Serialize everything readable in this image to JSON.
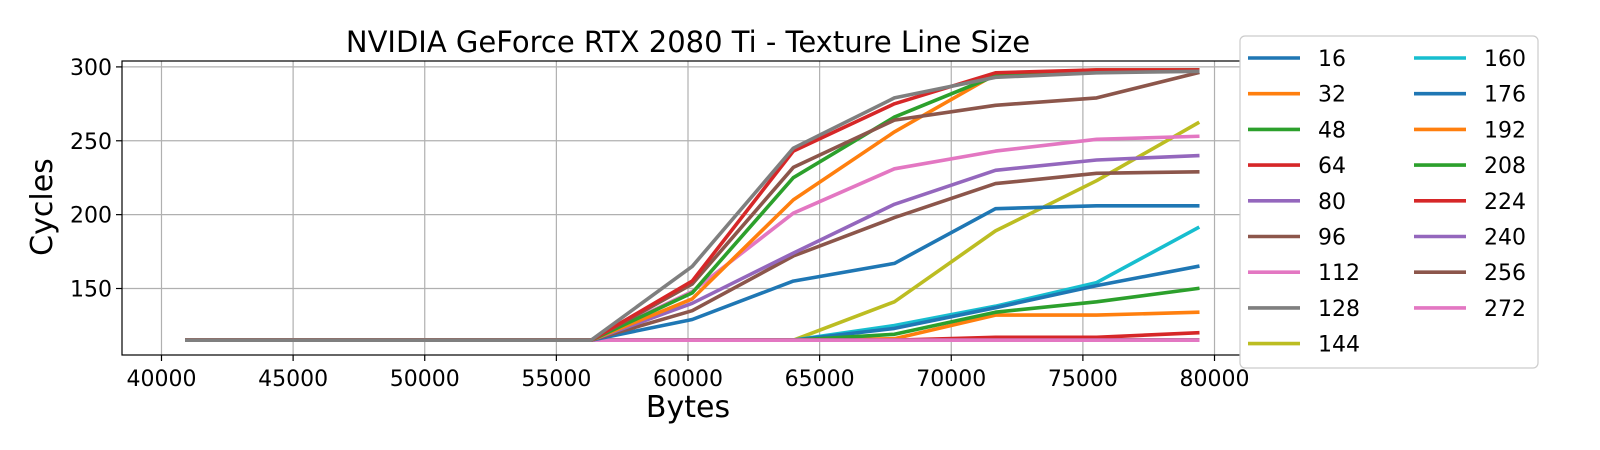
{
  "chart_data": {
    "type": "line",
    "title": "NVIDIA GeForce RTX 2080 Ti - Texture Line Size",
    "xlabel": "Bytes",
    "ylabel": "Cycles",
    "xlim": [
      38500,
      81500
    ],
    "ylim": [
      105,
      304
    ],
    "xticks": [
      40000,
      45000,
      50000,
      55000,
      60000,
      65000,
      70000,
      75000,
      80000
    ],
    "yticks": [
      150,
      200,
      250,
      300
    ],
    "grid": true,
    "legend_position": "outside-right",
    "legend_columns": 2,
    "x": [
      40960,
      56320,
      60160,
      64000,
      67840,
      71680,
      75520,
      79360
    ],
    "series": [
      {
        "name": "16",
        "color": "#1f77b4",
        "values": [
          115,
          115,
          115,
          115,
          115,
          115,
          115,
          115
        ]
      },
      {
        "name": "32",
        "color": "#ff7f0e",
        "values": [
          115,
          115,
          115,
          115,
          115,
          115,
          115,
          115
        ]
      },
      {
        "name": "48",
        "color": "#2ca02c",
        "values": [
          115,
          115,
          115,
          115,
          115,
          115,
          115,
          115
        ]
      },
      {
        "name": "64",
        "color": "#d62728",
        "values": [
          115,
          115,
          115,
          115,
          115,
          115,
          115,
          115
        ]
      },
      {
        "name": "80",
        "color": "#9467bd",
        "values": [
          115,
          115,
          115,
          115,
          115,
          115,
          115,
          115
        ]
      },
      {
        "name": "96",
        "color": "#8c564b",
        "values": [
          115,
          115,
          115,
          115,
          115,
          115,
          115,
          115
        ]
      },
      {
        "name": "112",
        "color": "#e377c2",
        "values": [
          115,
          115,
          115,
          115,
          115,
          115,
          115,
          115
        ]
      },
      {
        "name": "128",
        "color": "#7f7f7f",
        "values": [
          115,
          115,
          115,
          115,
          115,
          115,
          115,
          115
        ]
      },
      {
        "name": "144",
        "color": "#bcbd22",
        "values": [
          115,
          115,
          115,
          115,
          141,
          189,
          223,
          262
        ]
      },
      {
        "name": "160",
        "color": "#17becf",
        "values": [
          115,
          115,
          115,
          115,
          125,
          138,
          154,
          191
        ]
      },
      {
        "name": "176",
        "color": "#1f77b4",
        "values": [
          115,
          115,
          115,
          115,
          123,
          137,
          152,
          165
        ]
      },
      {
        "name": "192",
        "color": "#ff7f0e",
        "values": [
          115,
          115,
          115,
          115,
          116,
          132,
          132,
          134
        ]
      },
      {
        "name": "208",
        "color": "#2ca02c",
        "values": [
          115,
          115,
          115,
          115,
          119,
          134,
          141,
          150
        ]
      },
      {
        "name": "224",
        "color": "#d62728",
        "values": [
          115,
          115,
          115,
          115,
          115,
          117,
          117,
          120
        ]
      },
      {
        "name": "240",
        "color": "#9467bd",
        "values": [
          115,
          115,
          115,
          115,
          115,
          115,
          115,
          115
        ]
      },
      {
        "name": "256",
        "color": "#8c564b",
        "values": [
          115,
          115,
          115,
          115,
          115,
          115,
          115,
          115
        ]
      },
      {
        "name": "272",
        "color": "#e377c2",
        "values": [
          115,
          115,
          115,
          115,
          115,
          115,
          115,
          115
        ]
      },
      {
        "name": "176",
        "color": "#1f77b4",
        "values": [
          115,
          115,
          129,
          155,
          167,
          204,
          206,
          206
        ]
      },
      {
        "name": "96",
        "color": "#8c564b",
        "values": [
          115,
          115,
          135,
          172,
          198,
          221,
          228,
          229
        ]
      },
      {
        "name": "80",
        "color": "#9467bd",
        "values": [
          115,
          115,
          140,
          174,
          207,
          230,
          237,
          240
        ]
      },
      {
        "name": "112",
        "color": "#e377c2",
        "values": [
          115,
          115,
          148,
          201,
          231,
          243,
          251,
          253
        ]
      },
      {
        "name": "32",
        "color": "#ff7f0e",
        "values": [
          115,
          115,
          143,
          210,
          256,
          295,
          298,
          298
        ]
      },
      {
        "name": "48",
        "color": "#2ca02c",
        "values": [
          115,
          115,
          147,
          225,
          266,
          294,
          297,
          298
        ]
      },
      {
        "name": "96",
        "color": "#8c564b",
        "values": [
          115,
          115,
          153,
          232,
          264,
          274,
          279,
          296
        ]
      },
      {
        "name": "64",
        "color": "#d62728",
        "values": [
          115,
          115,
          155,
          243,
          275,
          296,
          298,
          298
        ]
      },
      {
        "name": "128",
        "color": "#7f7f7f",
        "values": [
          115,
          115,
          165,
          245,
          279,
          293,
          296,
          297
        ]
      }
    ],
    "legend": [
      {
        "name": "16",
        "color": "#1f77b4"
      },
      {
        "name": "32",
        "color": "#ff7f0e"
      },
      {
        "name": "48",
        "color": "#2ca02c"
      },
      {
        "name": "64",
        "color": "#d62728"
      },
      {
        "name": "80",
        "color": "#9467bd"
      },
      {
        "name": "96",
        "color": "#8c564b"
      },
      {
        "name": "112",
        "color": "#e377c2"
      },
      {
        "name": "128",
        "color": "#7f7f7f"
      },
      {
        "name": "144",
        "color": "#bcbd22"
      },
      {
        "name": "160",
        "color": "#17becf"
      },
      {
        "name": "176",
        "color": "#1f77b4"
      },
      {
        "name": "192",
        "color": "#ff7f0e"
      },
      {
        "name": "208",
        "color": "#2ca02c"
      },
      {
        "name": "224",
        "color": "#d62728"
      },
      {
        "name": "240",
        "color": "#9467bd"
      },
      {
        "name": "256",
        "color": "#8c564b"
      },
      {
        "name": "272",
        "color": "#e377c2"
      }
    ]
  }
}
